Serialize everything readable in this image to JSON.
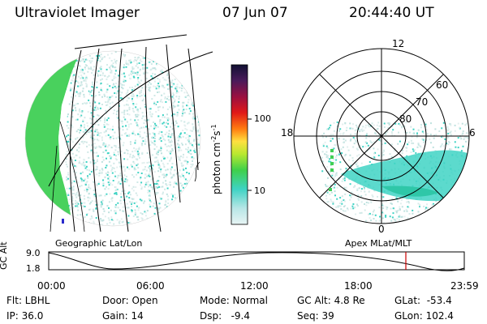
{
  "header": {
    "instrument": "Ultraviolet Imager",
    "date": "07 Jun 07",
    "time": "20:44:40 UT"
  },
  "colorbar": {
    "unit_label": "photon cm",
    "unit_exp_cm": "-2",
    "unit_s": "s",
    "unit_exp_s": "-1",
    "tick_high": "100",
    "tick_low": "10"
  },
  "left_panel": {
    "label": "Geographic Lat/Lon"
  },
  "right_panel": {
    "label": "Apex MLat/MLT",
    "mlt_top": "12",
    "mlt_left": "18",
    "mlt_right": "6",
    "mlt_bottom": "0",
    "lat_60": "60",
    "lat_70": "70",
    "lat_80": "80"
  },
  "altitude_strip": {
    "axis_label": "GC Alt",
    "y_high": "9.0",
    "y_low": "1.8",
    "x_ticks": [
      "00:00",
      "06:00",
      "12:00",
      "18:00",
      "23:59"
    ]
  },
  "info": {
    "flt": "Flt: LBHL",
    "ip": "IP: 36.0",
    "door": "Door: Open",
    "gain": "Gain: 14",
    "mode": "Mode: Normal",
    "dsp": "Dsp:   -9.4",
    "gc_alt": "GC Alt: 4.8 Re",
    "seq": "Seq: 39",
    "glat": "GLat:  -53.4",
    "glon": "GLon: 102.4"
  },
  "colors": {
    "background": "#ffffff",
    "noise_low": "#cfe8e6",
    "cyan": "#3fd3c4",
    "green": "#3fcf54",
    "marker_red": "#cc0000"
  }
}
